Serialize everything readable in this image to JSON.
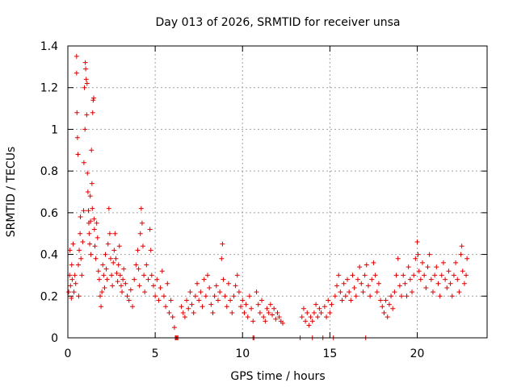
{
  "chart_data": {
    "type": "scatter",
    "title": "Day 013 of 2026, SRMTID for receiver unsa",
    "xlabel": "GPS time / hours",
    "ylabel": "SRMTID / TECUs",
    "xlim": [
      0,
      24
    ],
    "ylim": [
      0,
      1.4
    ],
    "x_ticks": [
      0,
      5,
      10,
      15,
      20
    ],
    "x_tick_labels": [
      "0",
      "5",
      "10",
      "15",
      "20"
    ],
    "y_ticks": [
      0,
      0.2,
      0.4,
      0.6,
      0.8,
      1,
      1.2,
      1.4
    ],
    "y_tick_labels": [
      "0",
      "0.2",
      "0.4",
      "0.6",
      "0.8",
      "1",
      "1.2",
      "1.4"
    ],
    "grid": true,
    "marker": "+",
    "color": "#e00000",
    "series": [
      {
        "name": "SRMTID",
        "points": [
          [
            0.05,
            0.22
          ],
          [
            0.1,
            0.3
          ],
          [
            0.12,
            0.42
          ],
          [
            0.15,
            0.25
          ],
          [
            0.2,
            0.19
          ],
          [
            0.22,
            0.35
          ],
          [
            0.25,
            0.28
          ],
          [
            0.3,
            0.45
          ],
          [
            0.35,
            0.22
          ],
          [
            0.4,
            0.3
          ],
          [
            0.45,
            0.26
          ],
          [
            0.5,
            1.35
          ],
          [
            0.5,
            1.27
          ],
          [
            0.52,
            1.08
          ],
          [
            0.55,
            0.96
          ],
          [
            0.58,
            0.88
          ],
          [
            0.6,
            0.35
          ],
          [
            0.62,
            0.2
          ],
          [
            0.65,
            0.42
          ],
          [
            0.7,
            0.5
          ],
          [
            0.72,
            0.58
          ],
          [
            0.75,
            0.38
          ],
          [
            0.8,
            0.3
          ],
          [
            0.85,
            0.46
          ],
          [
            0.9,
            0.61
          ],
          [
            0.92,
            0.84
          ],
          [
            0.95,
            1.2
          ],
          [
            0.98,
            1.0
          ],
          [
            1.0,
            1.32
          ],
          [
            1.02,
            1.29
          ],
          [
            1.05,
            1.24
          ],
          [
            1.08,
            1.07
          ],
          [
            1.1,
            1.22
          ],
          [
            1.12,
            0.79
          ],
          [
            1.15,
            0.7
          ],
          [
            1.18,
            0.61
          ],
          [
            1.2,
            0.55
          ],
          [
            1.22,
            0.5
          ],
          [
            1.25,
            0.45
          ],
          [
            1.28,
            0.68
          ],
          [
            1.3,
            0.56
          ],
          [
            1.32,
            0.4
          ],
          [
            1.35,
            0.9
          ],
          [
            1.38,
            0.74
          ],
          [
            1.4,
            0.62
          ],
          [
            1.42,
            1.08
          ],
          [
            1.45,
            1.14
          ],
          [
            1.48,
            1.15
          ],
          [
            1.5,
            0.57
          ],
          [
            1.52,
            0.52
          ],
          [
            1.55,
            0.44
          ],
          [
            1.6,
            0.38
          ],
          [
            1.65,
            0.55
          ],
          [
            1.7,
            0.48
          ],
          [
            1.75,
            0.32
          ],
          [
            1.8,
            0.28
          ],
          [
            1.85,
            0.2
          ],
          [
            1.9,
            0.15
          ],
          [
            1.95,
            0.22
          ],
          [
            2.0,
            0.35
          ],
          [
            2.05,
            0.3
          ],
          [
            2.1,
            0.24
          ],
          [
            2.15,
            0.4
          ],
          [
            2.2,
            0.33
          ],
          [
            2.25,
            0.28
          ],
          [
            2.3,
            0.45
          ],
          [
            2.35,
            0.62
          ],
          [
            2.4,
            0.5
          ],
          [
            2.45,
            0.38
          ],
          [
            2.5,
            0.3
          ],
          [
            2.55,
            0.25
          ],
          [
            2.6,
            0.36
          ],
          [
            2.65,
            0.42
          ],
          [
            2.7,
            0.5
          ],
          [
            2.75,
            0.38
          ],
          [
            2.8,
            0.31
          ],
          [
            2.85,
            0.27
          ],
          [
            2.9,
            0.35
          ],
          [
            2.95,
            0.44
          ],
          [
            3.0,
            0.3
          ],
          [
            3.05,
            0.25
          ],
          [
            3.1,
            0.22
          ],
          [
            3.15,
            0.28
          ],
          [
            3.2,
            0.33
          ],
          [
            3.3,
            0.26
          ],
          [
            3.4,
            0.2
          ],
          [
            3.5,
            0.18
          ],
          [
            3.6,
            0.23
          ],
          [
            3.7,
            0.15
          ],
          [
            3.8,
            0.28
          ],
          [
            3.9,
            0.35
          ],
          [
            4.0,
            0.42
          ],
          [
            4.05,
            0.33
          ],
          [
            4.1,
            0.25
          ],
          [
            4.15,
            0.5
          ],
          [
            4.2,
            0.62
          ],
          [
            4.25,
            0.55
          ],
          [
            4.3,
            0.44
          ],
          [
            4.35,
            0.3
          ],
          [
            4.4,
            0.22
          ],
          [
            4.5,
            0.35
          ],
          [
            4.6,
            0.28
          ],
          [
            4.7,
            0.52
          ],
          [
            4.75,
            0.42
          ],
          [
            4.8,
            0.3
          ],
          [
            4.9,
            0.25
          ],
          [
            5.0,
            0.2
          ],
          [
            5.1,
            0.28
          ],
          [
            5.2,
            0.18
          ],
          [
            5.3,
            0.24
          ],
          [
            5.4,
            0.32
          ],
          [
            5.5,
            0.2
          ],
          [
            5.6,
            0.15
          ],
          [
            5.7,
            0.26
          ],
          [
            5.8,
            0.12
          ],
          [
            5.9,
            0.18
          ],
          [
            6.0,
            0.1
          ],
          [
            6.1,
            0.05
          ],
          [
            6.15,
            0.0
          ],
          [
            6.2,
            0.0
          ],
          [
            6.25,
            0.0
          ],
          [
            6.3,
            0.0
          ],
          [
            6.5,
            0.15
          ],
          [
            6.6,
            0.12
          ],
          [
            6.7,
            0.1
          ],
          [
            6.8,
            0.18
          ],
          [
            6.9,
            0.14
          ],
          [
            7.0,
            0.22
          ],
          [
            7.1,
            0.16
          ],
          [
            7.2,
            0.12
          ],
          [
            7.3,
            0.2
          ],
          [
            7.4,
            0.26
          ],
          [
            7.5,
            0.18
          ],
          [
            7.6,
            0.22
          ],
          [
            7.7,
            0.15
          ],
          [
            7.8,
            0.28
          ],
          [
            7.9,
            0.2
          ],
          [
            8.0,
            0.3
          ],
          [
            8.1,
            0.24
          ],
          [
            8.2,
            0.16
          ],
          [
            8.3,
            0.12
          ],
          [
            8.4,
            0.2
          ],
          [
            8.5,
            0.25
          ],
          [
            8.6,
            0.18
          ],
          [
            8.7,
            0.22
          ],
          [
            8.8,
            0.38
          ],
          [
            8.85,
            0.45
          ],
          [
            8.9,
            0.28
          ],
          [
            9.0,
            0.2
          ],
          [
            9.1,
            0.15
          ],
          [
            9.2,
            0.26
          ],
          [
            9.3,
            0.18
          ],
          [
            9.4,
            0.12
          ],
          [
            9.5,
            0.2
          ],
          [
            9.6,
            0.25
          ],
          [
            9.7,
            0.3
          ],
          [
            9.8,
            0.22
          ],
          [
            9.9,
            0.15
          ],
          [
            10.0,
            0.18
          ],
          [
            10.1,
            0.12
          ],
          [
            10.2,
            0.16
          ],
          [
            10.3,
            0.1
          ],
          [
            10.4,
            0.2
          ],
          [
            10.5,
            0.14
          ],
          [
            10.6,
            0.08
          ],
          [
            10.6,
            0.0
          ],
          [
            10.65,
            0.0
          ],
          [
            10.8,
            0.22
          ],
          [
            10.9,
            0.16
          ],
          [
            11.0,
            0.12
          ],
          [
            11.1,
            0.18
          ],
          [
            11.2,
            0.1
          ],
          [
            11.3,
            0.08
          ],
          [
            11.4,
            0.14
          ],
          [
            11.5,
            0.12
          ],
          [
            11.6,
            0.16
          ],
          [
            11.7,
            0.11
          ],
          [
            11.8,
            0.14
          ],
          [
            11.9,
            0.09
          ],
          [
            12.0,
            0.12
          ],
          [
            12.1,
            0.1
          ],
          [
            12.2,
            0.08
          ],
          [
            12.3,
            0.07
          ],
          [
            13.3,
            0.0
          ],
          [
            13.4,
            0.1
          ],
          [
            13.5,
            0.14
          ],
          [
            13.6,
            0.08
          ],
          [
            13.7,
            0.12
          ],
          [
            13.8,
            0.06
          ],
          [
            13.9,
            0.1
          ],
          [
            14.0,
            0.0
          ],
          [
            14.0,
            0.08
          ],
          [
            14.1,
            0.12
          ],
          [
            14.2,
            0.16
          ],
          [
            14.3,
            0.1
          ],
          [
            14.4,
            0.14
          ],
          [
            14.5,
            0.12
          ],
          [
            14.6,
            0.0
          ],
          [
            14.7,
            0.15
          ],
          [
            14.8,
            0.1
          ],
          [
            14.9,
            0.18
          ],
          [
            15.0,
            0.12
          ],
          [
            15.1,
            0.16
          ],
          [
            15.2,
            0.0
          ],
          [
            15.3,
            0.2
          ],
          [
            15.4,
            0.25
          ],
          [
            15.5,
            0.3
          ],
          [
            15.6,
            0.22
          ],
          [
            15.7,
            0.18
          ],
          [
            15.8,
            0.26
          ],
          [
            15.9,
            0.2
          ],
          [
            16.0,
            0.28
          ],
          [
            16.1,
            0.22
          ],
          [
            16.2,
            0.18
          ],
          [
            16.3,
            0.3
          ],
          [
            16.4,
            0.24
          ],
          [
            16.5,
            0.2
          ],
          [
            16.6,
            0.28
          ],
          [
            16.7,
            0.34
          ],
          [
            16.8,
            0.26
          ],
          [
            16.9,
            0.22
          ],
          [
            17.0,
            0.3
          ],
          [
            17.05,
            0.0
          ],
          [
            17.1,
            0.35
          ],
          [
            17.2,
            0.25
          ],
          [
            17.3,
            0.2
          ],
          [
            17.4,
            0.28
          ],
          [
            17.5,
            0.36
          ],
          [
            17.6,
            0.3
          ],
          [
            17.7,
            0.22
          ],
          [
            17.8,
            0.26
          ],
          [
            17.9,
            0.18
          ],
          [
            18.0,
            0.15
          ],
          [
            18.1,
            0.12
          ],
          [
            18.2,
            0.18
          ],
          [
            18.3,
            0.1
          ],
          [
            18.4,
            0.16
          ],
          [
            18.5,
            0.2
          ],
          [
            18.6,
            0.14
          ],
          [
            18.7,
            0.22
          ],
          [
            18.8,
            0.3
          ],
          [
            18.9,
            0.38
          ],
          [
            19.0,
            0.25
          ],
          [
            19.1,
            0.2
          ],
          [
            19.2,
            0.3
          ],
          [
            19.3,
            0.26
          ],
          [
            19.4,
            0.2
          ],
          [
            19.5,
            0.34
          ],
          [
            19.6,
            0.28
          ],
          [
            19.7,
            0.22
          ],
          [
            19.8,
            0.3
          ],
          [
            19.9,
            0.38
          ],
          [
            20.0,
            0.46
          ],
          [
            20.05,
            0.4
          ],
          [
            20.1,
            0.32
          ],
          [
            20.2,
            0.28
          ],
          [
            20.3,
            0.36
          ],
          [
            20.4,
            0.3
          ],
          [
            20.5,
            0.24
          ],
          [
            20.6,
            0.34
          ],
          [
            20.7,
            0.4
          ],
          [
            20.8,
            0.28
          ],
          [
            20.9,
            0.22
          ],
          [
            21.0,
            0.3
          ],
          [
            21.1,
            0.34
          ],
          [
            21.2,
            0.26
          ],
          [
            21.3,
            0.2
          ],
          [
            21.4,
            0.3
          ],
          [
            21.5,
            0.36
          ],
          [
            21.6,
            0.28
          ],
          [
            21.7,
            0.24
          ],
          [
            21.8,
            0.32
          ],
          [
            21.9,
            0.26
          ],
          [
            22.0,
            0.2
          ],
          [
            22.1,
            0.3
          ],
          [
            22.2,
            0.36
          ],
          [
            22.3,
            0.28
          ],
          [
            22.4,
            0.22
          ],
          [
            22.5,
            0.4
          ],
          [
            22.55,
            0.44
          ],
          [
            22.6,
            0.32
          ],
          [
            22.7,
            0.26
          ],
          [
            22.8,
            0.3
          ],
          [
            22.85,
            0.38
          ]
        ]
      }
    ]
  }
}
